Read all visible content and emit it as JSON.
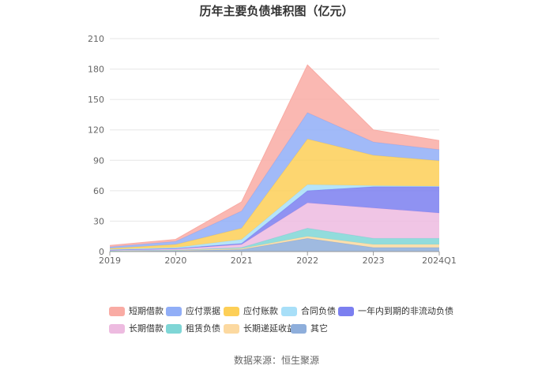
{
  "chart_data": {
    "type": "area",
    "stacked": true,
    "title": "历年主要负债堆积图（亿元）",
    "categories": [
      "2019",
      "2020",
      "2021",
      "2022",
      "2023",
      "2024Q1"
    ],
    "ylim": [
      0,
      210
    ],
    "yticks": [
      0,
      30,
      60,
      90,
      120,
      150,
      180,
      210
    ],
    "grid": true,
    "legend_position": "bottom",
    "series": [
      {
        "name": "其它",
        "color": "#8eaedb",
        "values": [
          0.5,
          0.8,
          2,
          13,
          4,
          4
        ]
      },
      {
        "name": "长期递延收益",
        "color": "#fcd9a0",
        "values": [
          0.3,
          0.5,
          1,
          2,
          3,
          3
        ]
      },
      {
        "name": "租赁负债",
        "color": "#7fd6d6",
        "values": [
          0,
          0.2,
          1,
          8,
          6,
          6
        ]
      },
      {
        "name": "长期借款",
        "color": "#edbbe0",
        "values": [
          0.5,
          1,
          3,
          25,
          30,
          25
        ]
      },
      {
        "name": "一年内到期的非流动负债",
        "color": "#7b7ff0",
        "values": [
          0.3,
          0.5,
          1,
          12,
          21,
          26
        ]
      },
      {
        "name": "合同负债",
        "color": "#a8dff8",
        "values": [
          0.5,
          1,
          4,
          6,
          1,
          0.5
        ]
      },
      {
        "name": "应付账款",
        "color": "#fdcf57",
        "values": [
          1,
          3,
          11,
          45,
          30,
          25
        ]
      },
      {
        "name": "应付票据",
        "color": "#91aef7",
        "values": [
          1.5,
          3,
          17,
          26,
          13,
          11
        ]
      },
      {
        "name": "短期借款",
        "color": "#f9aba4",
        "values": [
          1.5,
          2,
          9,
          47,
          12,
          9
        ]
      }
    ]
  },
  "legend": [
    {
      "label": "短期借款",
      "color": "#f9aba4"
    },
    {
      "label": "应付票据",
      "color": "#91aef7"
    },
    {
      "label": "应付账款",
      "color": "#fdcf57"
    },
    {
      "label": "合同负债",
      "color": "#a8dff8"
    },
    {
      "label": "一年内到期的非流动负债",
      "color": "#7b7ff0"
    },
    {
      "label": "长期借款",
      "color": "#edbbe0"
    },
    {
      "label": "租赁负债",
      "color": "#7fd6d6"
    },
    {
      "label": "长期递延收益",
      "color": "#fcd9a0"
    },
    {
      "label": "其它",
      "color": "#8eaedb"
    }
  ],
  "source": "数据来源：恒生聚源"
}
